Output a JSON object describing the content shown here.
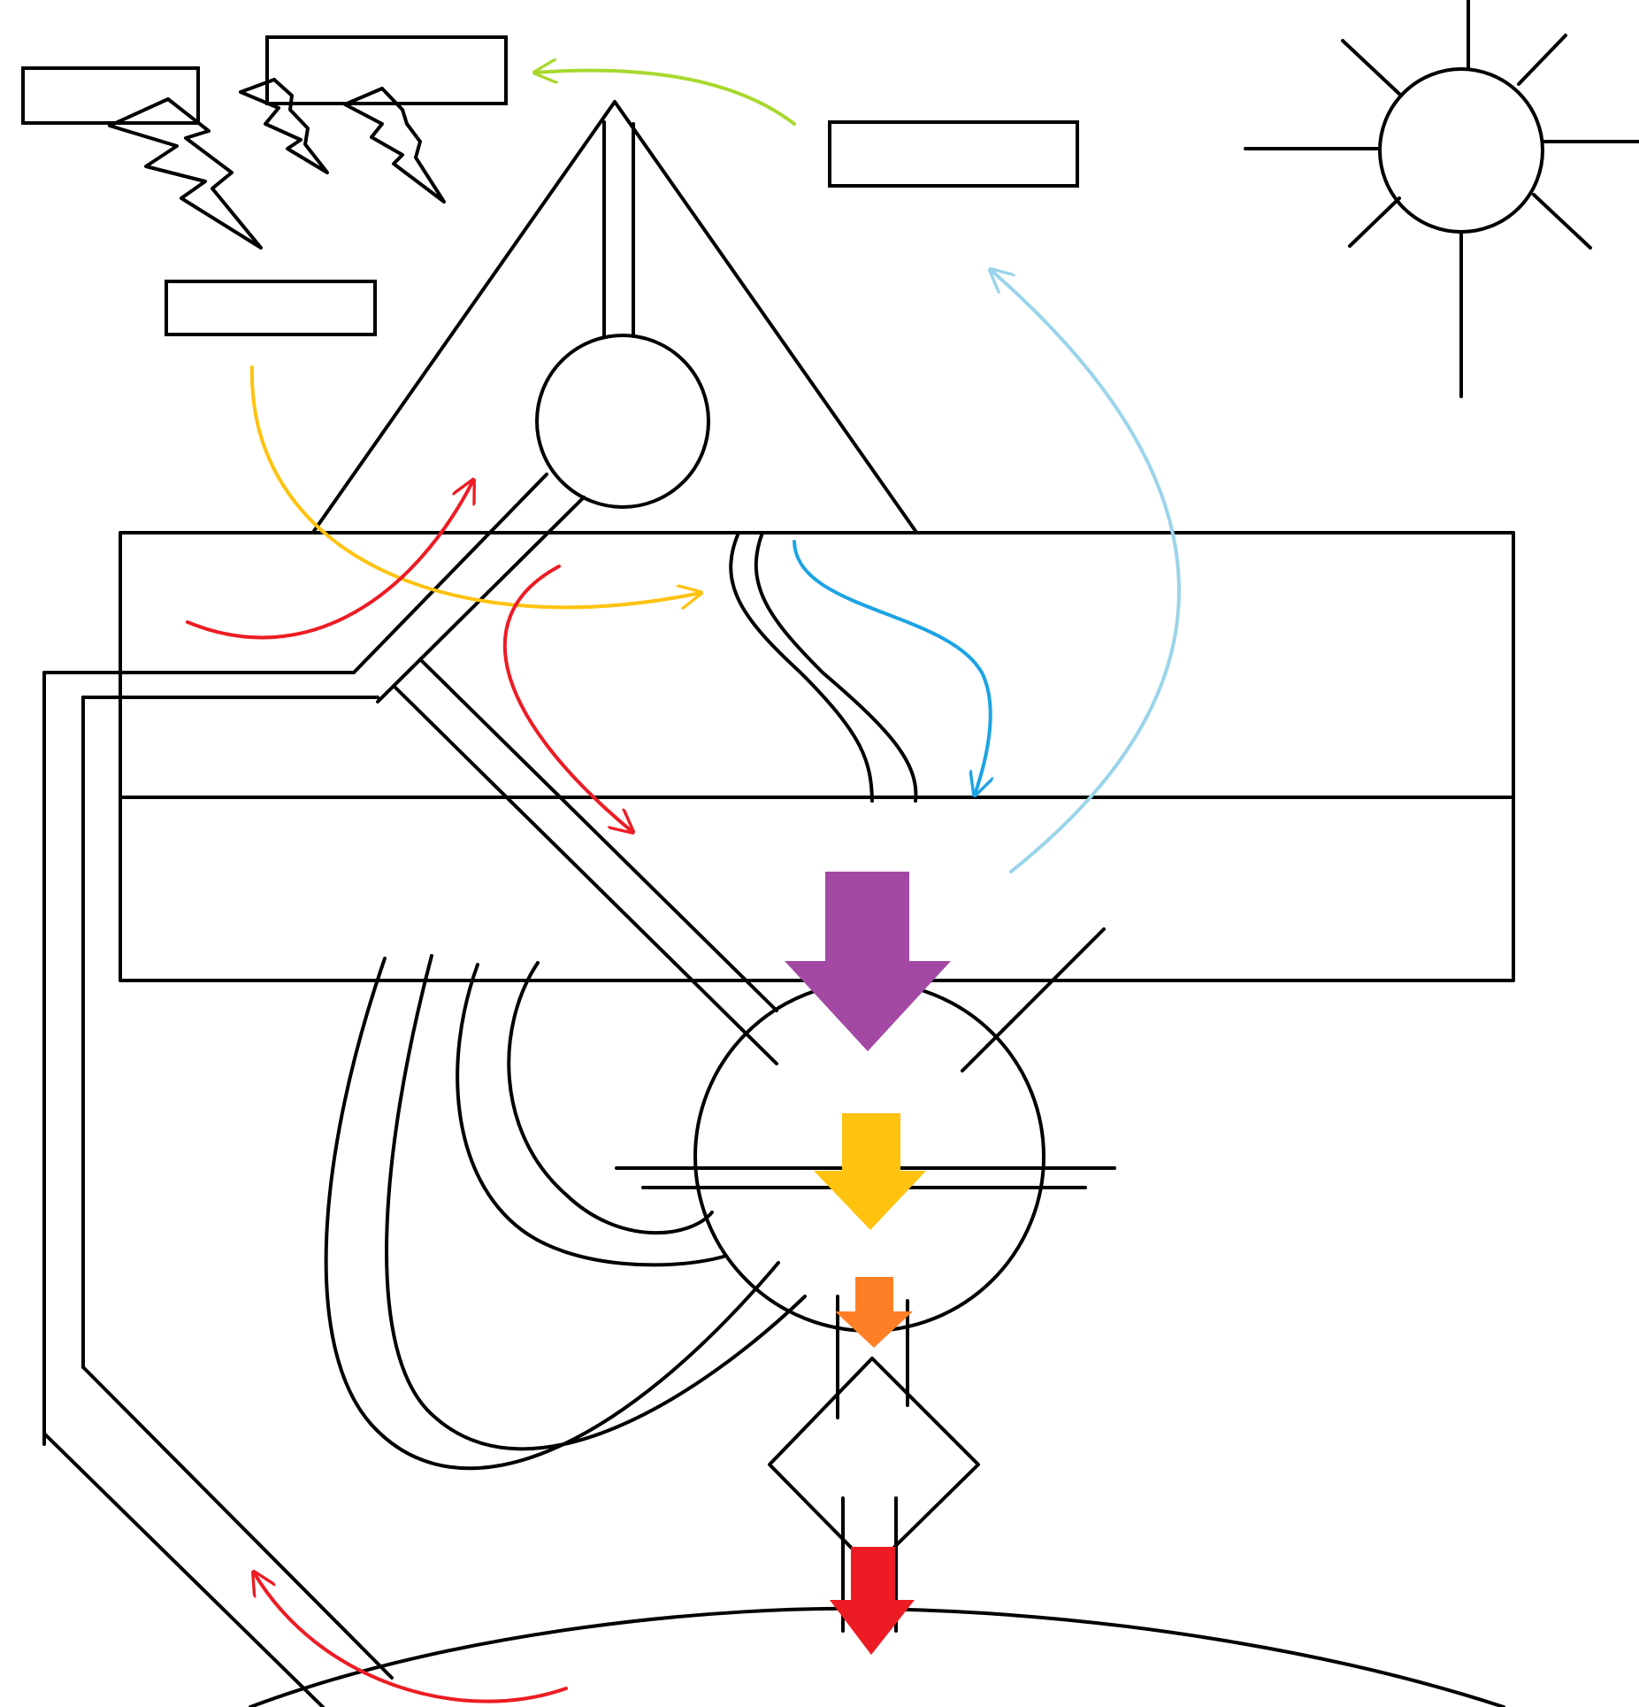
{
  "diagram": {
    "labels": [
      "",
      "",
      "",
      ""
    ],
    "colors": {
      "outline": "#000000",
      "background": "#ffffff",
      "green_arrow": "#a8d82e",
      "light_blue_arrow": "#9ad4ea",
      "blue_arrow": "#1ca3e4",
      "yellow_arrow": "#ffc20e",
      "red_arrow": "#ed1c24",
      "purple_arrow": "#a349a4",
      "orange_arrow": "#ff7f27"
    },
    "icons": [
      "sun-icon",
      "lightning-bolt-icon"
    ]
  }
}
